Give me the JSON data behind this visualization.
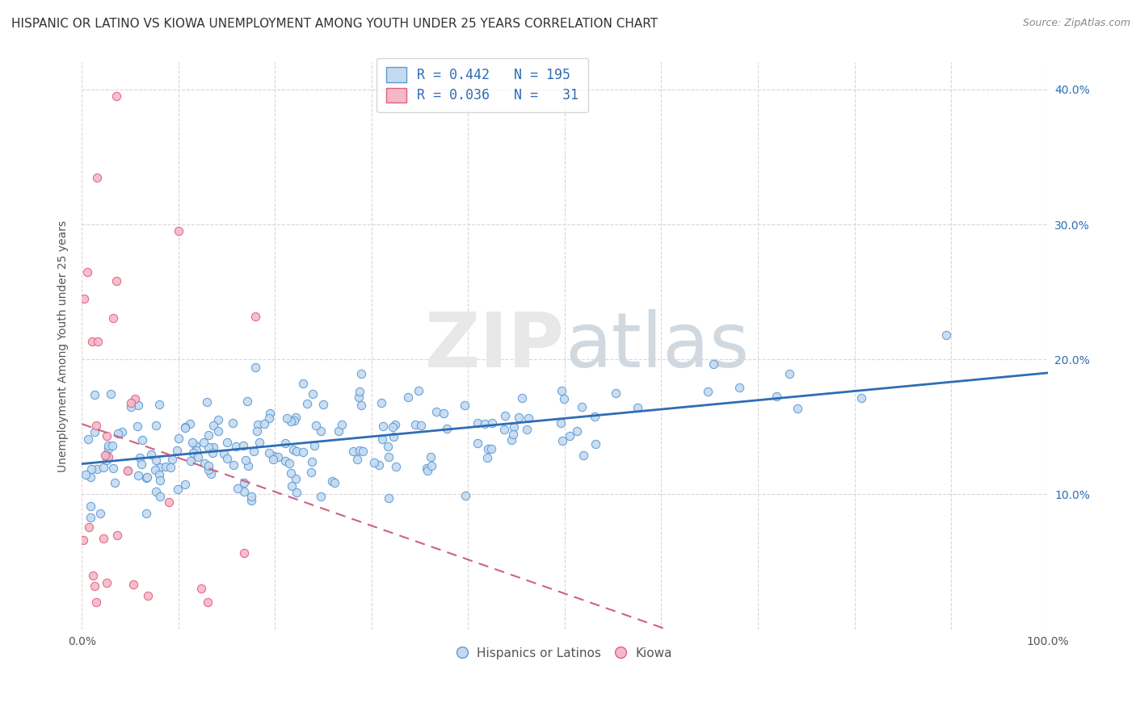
{
  "title": "HISPANIC OR LATINO VS KIOWA UNEMPLOYMENT AMONG YOUTH UNDER 25 YEARS CORRELATION CHART",
  "source": "Source: ZipAtlas.com",
  "ylabel": "Unemployment Among Youth under 25 years",
  "xlim": [
    0,
    1.0
  ],
  "ylim": [
    0,
    0.42
  ],
  "xtick_vals": [
    0.0,
    0.1,
    0.2,
    0.3,
    0.4,
    0.5,
    0.6,
    0.7,
    0.8,
    0.9,
    1.0
  ],
  "xtick_labels": [
    "0.0%",
    "",
    "",
    "",
    "",
    "",
    "",
    "",
    "",
    "",
    "100.0%"
  ],
  "ytick_vals": [
    0.1,
    0.2,
    0.3,
    0.4
  ],
  "ytick_labels": [
    "10.0%",
    "20.0%",
    "30.0%",
    "40.0%"
  ],
  "blue_R": 0.442,
  "blue_N": 195,
  "pink_R": 0.036,
  "pink_N": 31,
  "blue_fill_color": "#c5daf0",
  "blue_edge_color": "#5b9bd5",
  "pink_fill_color": "#f4b8c8",
  "pink_edge_color": "#e06080",
  "blue_line_color": "#2e6db4",
  "pink_line_color": "#d06080",
  "watermark": "ZIPatlas",
  "background_color": "#ffffff",
  "grid_color": "#ddd5d5",
  "title_fontsize": 11,
  "axis_label_fontsize": 10,
  "tick_fontsize": 10,
  "source_fontsize": 9
}
